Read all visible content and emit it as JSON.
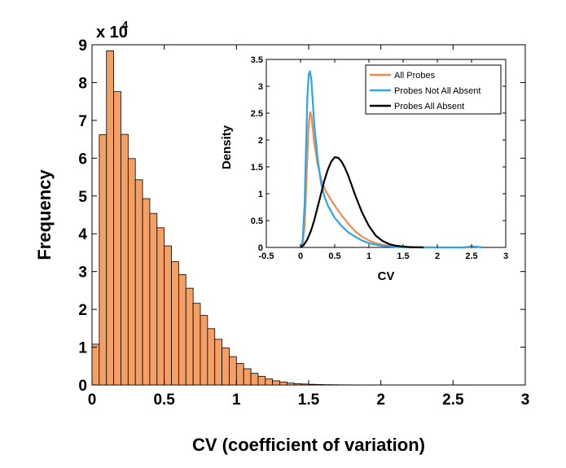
{
  "chart_data": [
    {
      "type": "bar",
      "xlabel": "CV (coefficient of variation)",
      "ylabel": "Frequency",
      "y_scale_label": "x 10",
      "y_scale_exponent": "4",
      "xlim": [
        0,
        3
      ],
      "ylim": [
        0,
        9
      ],
      "xticks": [
        "0",
        "0.5",
        "1",
        "1.5",
        "2",
        "2.5",
        "3"
      ],
      "yticks": [
        "0",
        "1",
        "2",
        "3",
        "4",
        "5",
        "6",
        "7",
        "8",
        "9"
      ],
      "bin_width": 0.05,
      "bin_start": 0.0,
      "values_x1e4": [
        1.08,
        6.62,
        8.84,
        7.76,
        6.63,
        5.99,
        5.43,
        4.93,
        4.54,
        4.16,
        3.68,
        3.26,
        2.92,
        2.56,
        2.16,
        1.84,
        1.49,
        1.21,
        0.98,
        0.75,
        0.57,
        0.43,
        0.31,
        0.23,
        0.16,
        0.11,
        0.08,
        0.05,
        0.035,
        0.025,
        0.018,
        0.012,
        0.008,
        0.006,
        0.004,
        0.003,
        0.002,
        0.0015,
        0.001,
        0.001,
        0.0008,
        0.0006,
        0.0005,
        0.0004,
        0.0003,
        0.0003,
        0.0002,
        0.0002,
        0.0002,
        0.0001,
        0.0001,
        0.0001
      ],
      "bar_color": "#f4a064",
      "edge_color": "#000000"
    },
    {
      "type": "line",
      "xlabel": "CV",
      "ylabel": "Density",
      "xlim": [
        -0.5,
        3
      ],
      "ylim": [
        0,
        3.5
      ],
      "xticks": [
        "-0.5",
        "0",
        "0.5",
        "1",
        "1.5",
        "2",
        "2.5",
        "3"
      ],
      "yticks": [
        "0",
        "0.5",
        "1",
        "1.5",
        "2",
        "2.5",
        "3",
        "3.5"
      ],
      "legend_position": "top-right",
      "series": [
        {
          "name": "All Probes",
          "color": "#f28a50",
          "x": [
            0.0,
            0.03,
            0.06,
            0.08,
            0.1,
            0.12,
            0.14,
            0.16,
            0.18,
            0.2,
            0.25,
            0.3,
            0.35,
            0.4,
            0.5,
            0.6,
            0.7,
            0.8,
            0.9,
            1.0,
            1.1,
            1.2,
            1.3,
            1.4,
            1.5,
            1.7,
            2.0,
            2.5
          ],
          "y": [
            0.0,
            0.05,
            0.4,
            1.0,
            1.7,
            2.3,
            2.52,
            2.45,
            2.2,
            1.95,
            1.55,
            1.28,
            1.1,
            0.98,
            0.78,
            0.6,
            0.44,
            0.3,
            0.2,
            0.13,
            0.08,
            0.05,
            0.03,
            0.02,
            0.01,
            0.005,
            0.0,
            0.0
          ]
        },
        {
          "name": "Probes Not All Absent",
          "color": "#2aa5e8",
          "x": [
            0.0,
            0.03,
            0.06,
            0.08,
            0.1,
            0.12,
            0.14,
            0.16,
            0.18,
            0.2,
            0.25,
            0.3,
            0.35,
            0.4,
            0.5,
            0.6,
            0.7,
            0.8,
            0.9,
            1.0,
            1.1,
            1.2,
            1.3,
            1.4,
            1.5,
            1.7,
            2.0,
            2.4,
            2.5,
            2.6,
            2.65
          ],
          "y": [
            0.0,
            0.1,
            0.8,
            1.8,
            2.8,
            3.22,
            3.28,
            3.1,
            2.7,
            2.3,
            1.65,
            1.2,
            0.95,
            0.78,
            0.55,
            0.4,
            0.28,
            0.2,
            0.13,
            0.08,
            0.05,
            0.03,
            0.02,
            0.01,
            0.005,
            0.0,
            0.0,
            0.0,
            0.02,
            0.01,
            0.0
          ]
        },
        {
          "name": "Probes All Absent",
          "color": "#000000",
          "x": [
            0.0,
            0.05,
            0.1,
            0.15,
            0.2,
            0.25,
            0.3,
            0.35,
            0.4,
            0.45,
            0.5,
            0.55,
            0.6,
            0.65,
            0.7,
            0.75,
            0.8,
            0.9,
            1.0,
            1.1,
            1.2,
            1.3,
            1.4,
            1.5,
            1.6,
            1.8
          ],
          "y": [
            0.0,
            0.05,
            0.15,
            0.3,
            0.5,
            0.75,
            1.0,
            1.25,
            1.45,
            1.6,
            1.68,
            1.67,
            1.6,
            1.48,
            1.33,
            1.15,
            0.97,
            0.65,
            0.4,
            0.22,
            0.12,
            0.06,
            0.03,
            0.015,
            0.006,
            0.0
          ]
        }
      ]
    }
  ]
}
